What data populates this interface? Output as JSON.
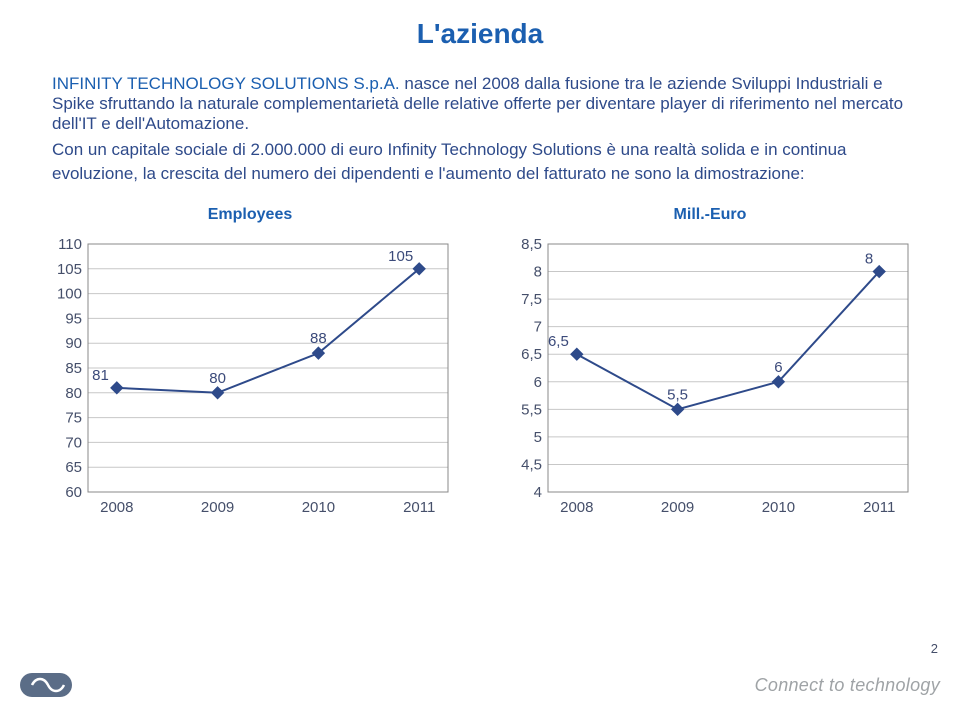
{
  "title": "L'azienda",
  "title_color": "#1b5fb0",
  "company_name": "INFINITY TECHNOLOGY SOLUTIONS S.p.A.",
  "company_name_color": "#1b5fb0",
  "body_sentence_1": " nasce nel 2008 dalla fusione tra le aziende Sviluppi Industriali e Spike sfruttando la naturale complementarietà delle relative offerte per diventare player di riferimento nel mercato dell'IT e dell'Automazione.",
  "body_sentence_2_a": "Con un capitale sociale di 2.000.000 di euro Infinity Technology Solutions è una realtà ",
  "body_sentence_2_b": "solida e in continua evoluzione",
  "body_sentence_2_c": ",  la crescita del numero dei dipendenti e l'aumento del fatturato ne sono la dimostrazione:",
  "body_color": "#2e4a8a",
  "page_number": "2",
  "footer_tag": "Connect to technology",
  "employees_chart": {
    "title": "Employees",
    "title_color": "#1b5fb0",
    "categories": [
      "2008",
      "2009",
      "2010",
      "2011"
    ],
    "values": [
      81,
      80,
      88,
      105
    ],
    "labels": [
      "81",
      "80",
      "88",
      "105"
    ],
    "line_color": "#2e4a8a",
    "ylim_min": 60,
    "ylim_max": 110,
    "ytick_step": 5,
    "yticks": [
      60,
      65,
      70,
      75,
      80,
      85,
      90,
      95,
      100,
      105,
      110
    ],
    "ytick_labels": [
      "60",
      "65",
      "70",
      "75",
      "80",
      "85",
      "90",
      "95",
      "100",
      "105",
      "110"
    ],
    "grid_color": "#c7c7c7",
    "box_color": "#888888",
    "background": "#ffffff",
    "marker": "diamond",
    "marker_size": 6
  },
  "revenue_chart": {
    "title": "Mill.-Euro",
    "title_color": "#1b5fb0",
    "categories": [
      "2008",
      "2009",
      "2010",
      "2011"
    ],
    "values": [
      6.5,
      5.5,
      6,
      8
    ],
    "labels": [
      "6,5",
      "5,5",
      "6",
      "8"
    ],
    "line_color": "#2e4a8a",
    "ylim_min": 4,
    "ylim_max": 8.5,
    "ytick_step": 0.5,
    "yticks": [
      4,
      4.5,
      5,
      5.5,
      6,
      6.5,
      7,
      7.5,
      8,
      8.5
    ],
    "ytick_labels": [
      "4",
      "4,5",
      "5",
      "5,5",
      "6",
      "6,5",
      "7",
      "7,5",
      "8",
      "8,5"
    ],
    "grid_color": "#c7c7c7",
    "box_color": "#888888",
    "background": "#ffffff",
    "marker": "diamond",
    "marker_size": 6
  }
}
